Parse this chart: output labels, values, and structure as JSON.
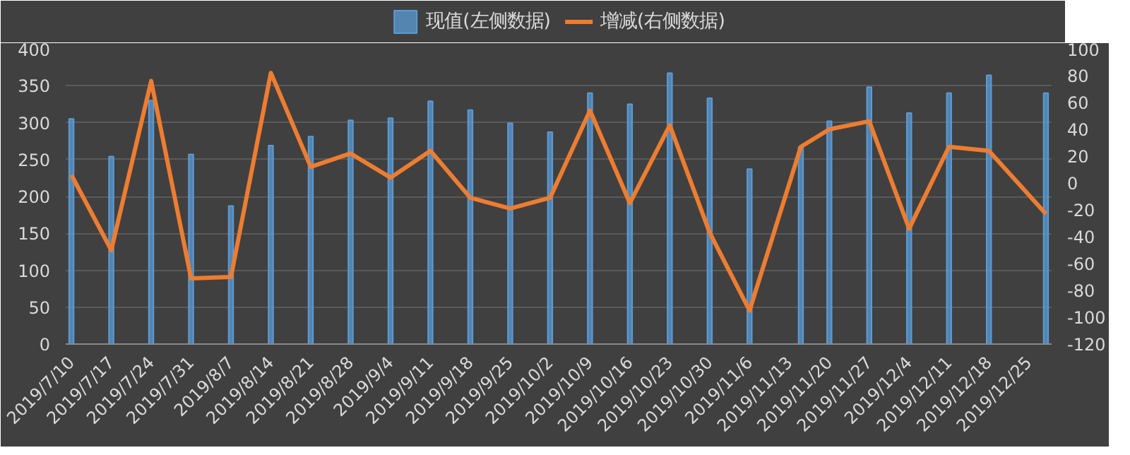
{
  "chart_data": {
    "type": "bar",
    "x": [
      "2019-07-10",
      "2019-07-17",
      "2019-07-24",
      "2019-07-31",
      "2019-08-07",
      "2019-08-14",
      "2019-08-21",
      "2019-08-28",
      "2019-09-04",
      "2019-09-11",
      "2019-09-18",
      "2019-09-25",
      "2019-10-02",
      "2019-10-09",
      "2019-10-16",
      "2019-10-23",
      "2019-10-30",
      "2019-11-06",
      "2019-11-15",
      "2019-11-20",
      "2019-11-27",
      "2019-12-04",
      "2019-12-11",
      "2019-12-18",
      "2019-12-28"
    ],
    "series": [
      {
        "name": "现值(左侧数据)",
        "color": "#5b9bd5",
        "values": [
          305,
          254,
          330,
          257,
          187,
          269,
          281,
          303,
          306,
          329,
          317,
          299,
          287,
          340,
          325,
          367,
          333,
          237,
          267,
          302,
          348,
          313,
          340,
          364,
          340
        ]
      },
      {
        "name": "增减(右侧数据)",
        "type": "line",
        "axis": "y2",
        "color": "#ed7d31",
        "values": [
          6,
          -50,
          76,
          -71,
          -70,
          82,
          12,
          22,
          4,
          24,
          -11,
          -19,
          -11,
          54,
          -15,
          43,
          -37,
          -95,
          27,
          40,
          46,
          -34,
          27,
          24,
          -23
        ]
      }
    ],
    "xlim": [
      "2019-07-09",
      "2019-12-29"
    ],
    "xticks": [
      {
        "value": "2019-07-10",
        "label": "2019/7/10"
      },
      {
        "value": "2019-07-17",
        "label": "2019/7/17"
      },
      {
        "value": "2019-07-24",
        "label": "2019/7/24"
      },
      {
        "value": "2019-07-31",
        "label": "2019/7/31"
      },
      {
        "value": "2019-08-07",
        "label": "2019/8/7"
      },
      {
        "value": "2019-08-14",
        "label": "2019/8/14"
      },
      {
        "value": "2019-08-21",
        "label": "2019/8/21"
      },
      {
        "value": "2019-08-28",
        "label": "2019/8/28"
      },
      {
        "value": "2019-09-04",
        "label": "2019/9/4"
      },
      {
        "value": "2019-09-11",
        "label": "2019/9/11"
      },
      {
        "value": "2019-09-18",
        "label": "2019/9/18"
      },
      {
        "value": "2019-09-25",
        "label": "2019/9/25"
      },
      {
        "value": "2019-10-02",
        "label": "2019/10/2"
      },
      {
        "value": "2019-10-09",
        "label": "2019/10/9"
      },
      {
        "value": "2019-10-16",
        "label": "2019/10/16"
      },
      {
        "value": "2019-10-23",
        "label": "2019/10/23"
      },
      {
        "value": "2019-10-30",
        "label": "2019/10/30"
      },
      {
        "value": "2019-11-06",
        "label": "2019/11/6"
      },
      {
        "value": "2019-11-13",
        "label": "2019/11/13"
      },
      {
        "value": "2019-11-20",
        "label": "2019/11/20"
      },
      {
        "value": "2019-11-27",
        "label": "2019/11/27"
      },
      {
        "value": "2019-12-04",
        "label": "2019/12/4"
      },
      {
        "value": "2019-12-11",
        "label": "2019/12/11"
      },
      {
        "value": "2019-12-18",
        "label": "2019/12/18"
      },
      {
        "value": "2019-12-25",
        "label": "2019/12/25"
      }
    ],
    "ylim": [
      0,
      400
    ],
    "yticks": [
      0,
      50,
      100,
      150,
      200,
      250,
      300,
      350,
      400
    ],
    "y2lim": [
      -120,
      100
    ],
    "y2ticks": [
      -120,
      -100,
      -80,
      -60,
      -40,
      -20,
      0,
      20,
      40,
      60,
      80,
      100
    ],
    "grid": "y",
    "legend": "top",
    "marker": "none",
    "line_style": "solid"
  }
}
